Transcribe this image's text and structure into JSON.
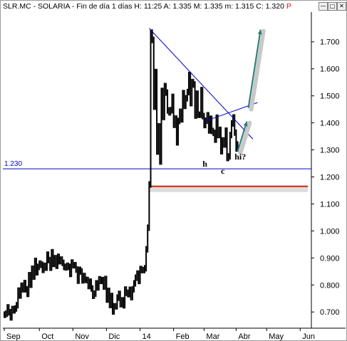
{
  "window": {
    "title": "SLR.MC - SOLARIA - Fin de día 1 días  H: 11:25  A: 1.335  M: 1.335  m: 1.315  C: 1.320",
    "flag": "P",
    "buttons": {
      "minimize": "—",
      "maximize": "□",
      "close": "✕"
    }
  },
  "chart_data": {
    "type": "candlestick",
    "title": "SLR.MC - SOLARIA - Fin de día 1 días",
    "quote": {
      "H": "11:25",
      "A": "1.335",
      "M": "1.335",
      "m": "1.315",
      "C": "1.320"
    },
    "ylim": [
      0.64,
      1.81
    ],
    "yticks": [
      "1.700",
      "1.600",
      "1.500",
      "1.400",
      "1.300",
      "1.200",
      "1.100",
      "1.000",
      "0.900",
      "0.800",
      "0.700"
    ],
    "xticks": [
      "Sep",
      "Oct",
      "Nov",
      "Dic",
      "14",
      "Feb",
      "Mar",
      "Abr",
      "May",
      "Jun"
    ],
    "x_tick_index": [
      0,
      23,
      45,
      67,
      89,
      111,
      131,
      152,
      172,
      194
    ],
    "n_slots": 200,
    "support_line": {
      "level": 1.23,
      "label": "1.230",
      "color": "#0000cc"
    },
    "resistance_line": {
      "level": 1.165,
      "color": "#cc2200"
    },
    "trend_lines": [
      {
        "from": [
          95,
          1.75
        ],
        "to": [
          163,
          1.34
        ],
        "color": "#0000cc"
      },
      {
        "from": [
          131,
          1.405
        ],
        "to": [
          166,
          1.475
        ],
        "color": "#0000cc"
      }
    ],
    "annotations": [
      {
        "text": "h",
        "x": 130,
        "y": 1.238
      },
      {
        "text": "c",
        "x": 142,
        "y": 1.212
      },
      {
        "text": "hi?",
        "x": 151,
        "y": 1.265
      }
    ],
    "arrows": [
      {
        "from": [
          160,
          1.455
        ],
        "to": [
          168,
          1.745
        ],
        "color": "#2e7a7a"
      },
      {
        "from": [
          153,
          1.295
        ],
        "to": [
          159,
          1.405
        ],
        "color": "#2e7a7a"
      }
    ],
    "close": [
      0.69,
      0.694,
      0.717,
      0.699,
      0.68,
      0.711,
      0.706,
      0.713,
      0.725,
      0.779,
      0.761,
      0.797,
      0.784,
      0.807,
      0.784,
      0.767,
      0.836,
      0.801,
      0.86,
      0.831,
      0.889,
      0.847,
      0.867,
      0.879,
      0.875,
      0.856,
      0.871,
      0.864,
      0.912,
      0.892,
      0.864,
      0.921,
      0.878,
      0.899,
      0.871,
      0.904,
      0.888,
      0.894,
      0.882,
      0.867,
      0.865,
      0.871,
      0.867,
      0.841,
      0.883,
      0.873,
      0.873,
      0.857,
      0.816,
      0.856,
      0.85,
      0.817,
      0.833,
      0.819,
      0.818,
      0.796,
      0.812,
      0.787,
      0.76,
      0.768,
      0.806,
      0.791,
      0.821,
      0.815,
      0.818,
      0.794,
      0.822,
      0.746,
      0.778,
      0.726,
      0.759,
      0.702,
      0.721,
      0.721,
      0.753,
      0.767,
      0.729,
      0.743,
      0.725,
      0.783,
      0.771,
      0.766,
      0.782,
      0.755,
      0.784,
      0.806,
      0.827,
      0.842,
      0.815,
      0.859,
      0.855,
      0.855,
      0.862,
      0.932,
      1.012,
      1.172,
      1.734,
      1.707,
      1.46,
      1.588,
      1.294,
      1.387,
      1.257,
      1.518,
      1.422,
      1.536,
      1.512,
      1.446,
      1.439,
      1.447,
      1.496,
      1.393,
      1.416,
      1.328,
      1.407,
      1.441,
      1.413,
      1.51,
      1.463,
      1.491,
      1.514,
      1.577,
      1.473,
      1.551,
      1.542,
      1.427,
      1.508,
      1.43,
      1.43,
      1.521,
      1.425,
      1.392,
      1.408,
      1.428,
      1.372,
      1.415,
      1.37,
      1.363,
      1.338,
      1.419,
      1.355,
      1.374,
      1.295,
      1.335,
      1.32,
      1.371,
      1.27,
      1.276,
      1.355,
      1.398,
      1.42,
      1.364,
      1.305,
      1.32
    ]
  }
}
